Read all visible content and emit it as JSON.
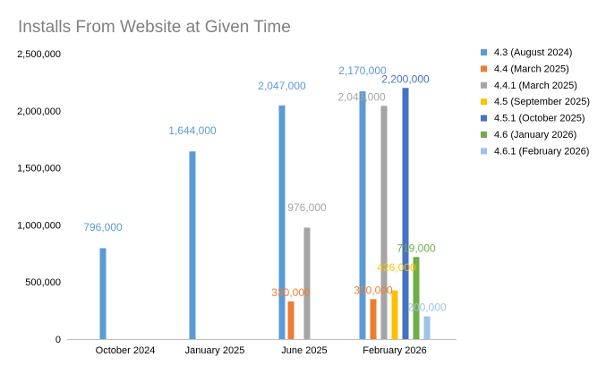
{
  "chart_data": {
    "type": "bar",
    "title": "Installs From Website at Given Time",
    "xlabel": "",
    "ylabel": "",
    "categories": [
      "October 2024",
      "January 2025",
      "June 2025",
      "February 2026"
    ],
    "ylim": [
      0,
      2500000
    ],
    "yticks": [
      0,
      500000,
      1000000,
      1500000,
      2000000,
      2500000
    ],
    "ytick_labels": [
      "0",
      "500,000",
      "1,000,000",
      "1,500,000",
      "2,000,000",
      "2,500,000"
    ],
    "legend_position": "right",
    "grid": false,
    "series": [
      {
        "name": "4.3 (August 2024)",
        "color": "#5b9bd5",
        "values": [
          796000,
          1644000,
          2047000,
          2170000
        ],
        "labels": [
          "796,000",
          "1,644,000",
          "2,047,000",
          "2,170,000"
        ]
      },
      {
        "name": "4.4 (March 2025)",
        "color": "#ed7d31",
        "values": [
          null,
          null,
          330000,
          350000
        ],
        "labels": [
          "",
          "",
          "330,000",
          "350,000"
        ]
      },
      {
        "name": "4.4.1 (March 2025)",
        "color": "#a5a5a5",
        "values": [
          null,
          null,
          976000,
          2043000
        ],
        "labels": [
          "",
          "",
          "976,000",
          "2,043,000"
        ]
      },
      {
        "name": "4.5 (September 2025)",
        "color": "#ffc000",
        "values": [
          null,
          null,
          null,
          426000
        ],
        "labels": [
          "",
          "",
          "",
          "426,000"
        ]
      },
      {
        "name": "4.5.1 (October 2025)",
        "color": "#4472c4",
        "values": [
          null,
          null,
          null,
          2200000
        ],
        "labels": [
          "",
          "",
          "",
          "2,200,000"
        ]
      },
      {
        "name": "4.6 (January 2026)",
        "color": "#70ad47",
        "values": [
          null,
          null,
          null,
          719000
        ],
        "labels": [
          "",
          "",
          "",
          "719,000"
        ]
      },
      {
        "name": "4.6.1 (February 2026)",
        "color": "#9dc3e6",
        "values": [
          null,
          null,
          null,
          200000
        ],
        "labels": [
          "",
          "",
          "",
          "200,000"
        ]
      }
    ]
  }
}
